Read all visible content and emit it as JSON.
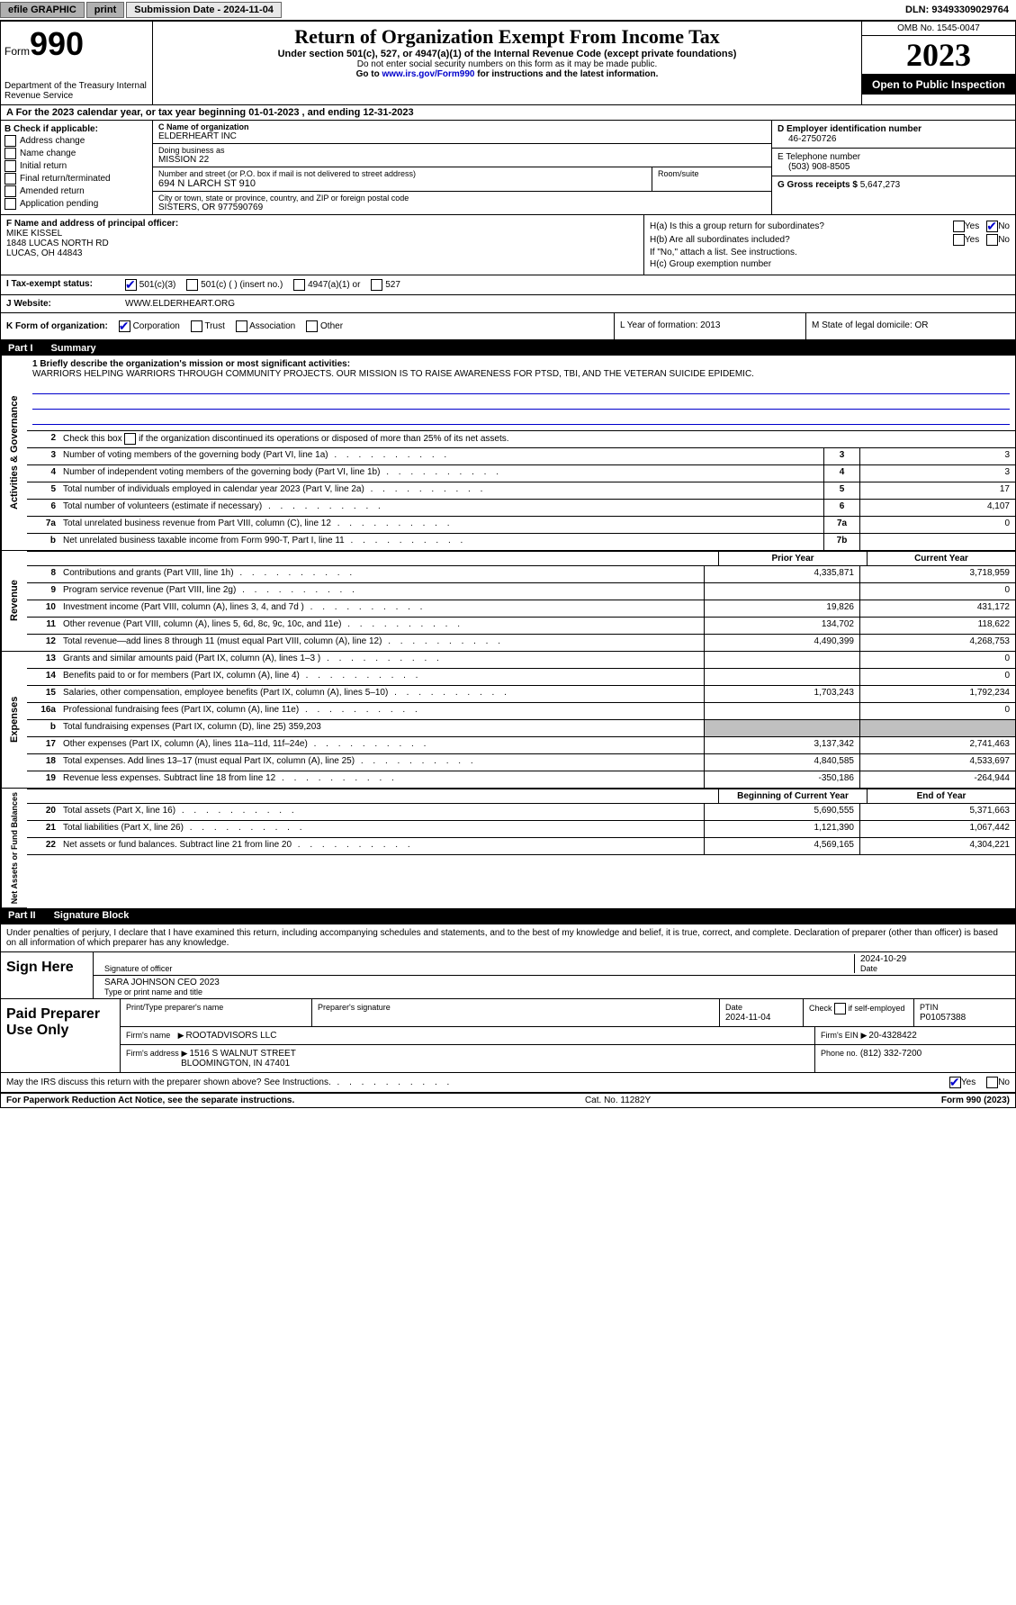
{
  "topbar": {
    "efile": "efile GRAPHIC",
    "print": "print",
    "submission": "Submission Date - 2024-11-04",
    "dln": "DLN: 93493309029764"
  },
  "header": {
    "form_label": "Form",
    "form_num": "990",
    "dept": "Department of the Treasury\nInternal Revenue Service",
    "title": "Return of Organization Exempt From Income Tax",
    "subtitle": "Under section 501(c), 527, or 4947(a)(1) of the Internal Revenue Code (except private foundations)",
    "note1": "Do not enter social security numbers on this form as it may be made public.",
    "note2": "Go to www.irs.gov/Form990 for instructions and the latest information.",
    "omb": "OMB No. 1545-0047",
    "year": "2023",
    "open": "Open to Public Inspection"
  },
  "period": "A For the 2023 calendar year, or tax year beginning 01-01-2023   , and ending 12-31-2023",
  "section_b": {
    "label": "B Check if applicable:",
    "opts": [
      "Address change",
      "Name change",
      "Initial return",
      "Final return/terminated",
      "Amended return",
      "Application pending"
    ]
  },
  "section_c": {
    "name_label": "C Name of organization",
    "name": "ELDERHEART INC",
    "dba_label": "Doing business as",
    "dba": "MISSION 22",
    "street_label": "Number and street (or P.O. box if mail is not delivered to street address)",
    "street": "694 N LARCH ST 910",
    "room_label": "Room/suite",
    "city_label": "City or town, state or province, country, and ZIP or foreign postal code",
    "city": "SISTERS, OR  977590769"
  },
  "section_d": {
    "ein_label": "D Employer identification number",
    "ein": "46-2750726",
    "phone_label": "E Telephone number",
    "phone": "(503) 908-8505",
    "gross_label": "G Gross receipts $",
    "gross": "5,647,273"
  },
  "officer": {
    "label": "F  Name and address of principal officer:",
    "name": "MIKE KISSEL",
    "addr1": "1848 LUCAS NORTH RD",
    "addr2": "LUCAS, OH  44843"
  },
  "section_h": {
    "ha": "H(a)  Is this a group return for subordinates?",
    "hb": "H(b)  Are all subordinates included?",
    "hb_note": "If \"No,\" attach a list. See instructions.",
    "hc": "H(c)  Group exemption number"
  },
  "tax_status": {
    "label": "I  Tax-exempt status:",
    "opt1": "501(c)(3)",
    "opt2": "501(c) (  ) (insert no.)",
    "opt3": "4947(a)(1) or",
    "opt4": "527"
  },
  "website": {
    "label": "J  Website:",
    "url": "WWW.ELDERHEART.ORG"
  },
  "form_org": {
    "label": "K Form of organization:",
    "opts": [
      "Corporation",
      "Trust",
      "Association",
      "Other"
    ],
    "l": "L Year of formation: 2013",
    "m": "M State of legal domicile: OR"
  },
  "part1": {
    "label": "Part I",
    "title": "Summary"
  },
  "mission": {
    "label": "1  Briefly describe the organization's mission or most significant activities:",
    "text": "WARRIORS HELPING WARRIORS THROUGH COMMUNITY PROJECTS. OUR MISSION IS TO RAISE AWARENESS FOR PTSD, TBI, AND THE VETERAN SUICIDE EPIDEMIC."
  },
  "line2": "Check this box      if the organization discontinued its operations or disposed of more than 25% of its net assets.",
  "governance": {
    "lines": [
      {
        "n": "3",
        "t": "Number of voting members of the governing body (Part VI, line 1a)",
        "box": "3",
        "v": "3"
      },
      {
        "n": "4",
        "t": "Number of independent voting members of the governing body (Part VI, line 1b)",
        "box": "4",
        "v": "3"
      },
      {
        "n": "5",
        "t": "Total number of individuals employed in calendar year 2023 (Part V, line 2a)",
        "box": "5",
        "v": "17"
      },
      {
        "n": "6",
        "t": "Total number of volunteers (estimate if necessary)",
        "box": "6",
        "v": "4,107"
      },
      {
        "n": "7a",
        "t": "Total unrelated business revenue from Part VIII, column (C), line 12",
        "box": "7a",
        "v": "0"
      },
      {
        "n": "b",
        "t": "Net unrelated business taxable income from Form 990-T, Part I, line 11",
        "box": "7b",
        "v": ""
      }
    ]
  },
  "col_headers": {
    "prior": "Prior Year",
    "current": "Current Year",
    "begin": "Beginning of Current Year",
    "end": "End of Year"
  },
  "revenue": [
    {
      "n": "8",
      "t": "Contributions and grants (Part VIII, line 1h)",
      "p": "4,335,871",
      "c": "3,718,959"
    },
    {
      "n": "9",
      "t": "Program service revenue (Part VIII, line 2g)",
      "p": "",
      "c": "0"
    },
    {
      "n": "10",
      "t": "Investment income (Part VIII, column (A), lines 3, 4, and 7d )",
      "p": "19,826",
      "c": "431,172"
    },
    {
      "n": "11",
      "t": "Other revenue (Part VIII, column (A), lines 5, 6d, 8c, 9c, 10c, and 11e)",
      "p": "134,702",
      "c": "118,622"
    },
    {
      "n": "12",
      "t": "Total revenue—add lines 8 through 11 (must equal Part VIII, column (A), line 12)",
      "p": "4,490,399",
      "c": "4,268,753"
    }
  ],
  "expenses": [
    {
      "n": "13",
      "t": "Grants and similar amounts paid (Part IX, column (A), lines 1–3 )",
      "p": "",
      "c": "0"
    },
    {
      "n": "14",
      "t": "Benefits paid to or for members (Part IX, column (A), line 4)",
      "p": "",
      "c": "0"
    },
    {
      "n": "15",
      "t": "Salaries, other compensation, employee benefits (Part IX, column (A), lines 5–10)",
      "p": "1,703,243",
      "c": "1,792,234"
    },
    {
      "n": "16a",
      "t": "Professional fundraising fees (Part IX, column (A), line 11e)",
      "p": "",
      "c": "0"
    },
    {
      "n": "b",
      "t": "Total fundraising expenses (Part IX, column (D), line 25) 359,203",
      "p": "shaded",
      "c": "shaded"
    },
    {
      "n": "17",
      "t": "Other expenses (Part IX, column (A), lines 11a–11d, 11f–24e)",
      "p": "3,137,342",
      "c": "2,741,463"
    },
    {
      "n": "18",
      "t": "Total expenses. Add lines 13–17 (must equal Part IX, column (A), line 25)",
      "p": "4,840,585",
      "c": "4,533,697"
    },
    {
      "n": "19",
      "t": "Revenue less expenses. Subtract line 18 from line 12",
      "p": "-350,186",
      "c": "-264,944"
    }
  ],
  "netassets": [
    {
      "n": "20",
      "t": "Total assets (Part X, line 16)",
      "p": "5,690,555",
      "c": "5,371,663"
    },
    {
      "n": "21",
      "t": "Total liabilities (Part X, line 26)",
      "p": "1,121,390",
      "c": "1,067,442"
    },
    {
      "n": "22",
      "t": "Net assets or fund balances. Subtract line 21 from line 20",
      "p": "4,569,165",
      "c": "4,304,221"
    }
  ],
  "side_labels": {
    "gov": "Activities & Governance",
    "rev": "Revenue",
    "exp": "Expenses",
    "net": "Net Assets or Fund Balances"
  },
  "part2": {
    "label": "Part II",
    "title": "Signature Block"
  },
  "sig_intro": "Under penalties of perjury, I declare that I have examined this return, including accompanying schedules and statements, and to the best of my knowledge and belief, it is true, correct, and complete. Declaration of preparer (other than officer) is based on all information of which preparer has any knowledge.",
  "sign_here": {
    "label": "Sign Here",
    "sig_label": "Signature of officer",
    "date": "2024-10-29",
    "date_label": "Date",
    "name": "SARA JOHNSON  CEO 2023",
    "name_label": "Type or print name and title"
  },
  "preparer": {
    "label": "Paid Preparer Use Only",
    "name_label": "Print/Type preparer's name",
    "sig_label": "Preparer's signature",
    "date_label": "Date",
    "date": "2024-11-04",
    "check_label": "Check        if self-employed",
    "ptin_label": "PTIN",
    "ptin": "P01057388",
    "firm_name_label": "Firm's name",
    "firm_name": "ROOTADVISORS LLC",
    "firm_ein_label": "Firm's EIN",
    "firm_ein": "20-4328422",
    "firm_addr_label": "Firm's address",
    "firm_addr1": "1516 S WALNUT STREET",
    "firm_addr2": "BLOOMINGTON, IN  47401",
    "phone_label": "Phone no.",
    "phone": "(812) 332-7200"
  },
  "discuss": "May the IRS discuss this return with the preparer shown above? See Instructions.",
  "footer": {
    "left": "For Paperwork Reduction Act Notice, see the separate instructions.",
    "mid": "Cat. No. 11282Y",
    "right": "Form 990 (2023)"
  },
  "yes": "Yes",
  "no": "No"
}
